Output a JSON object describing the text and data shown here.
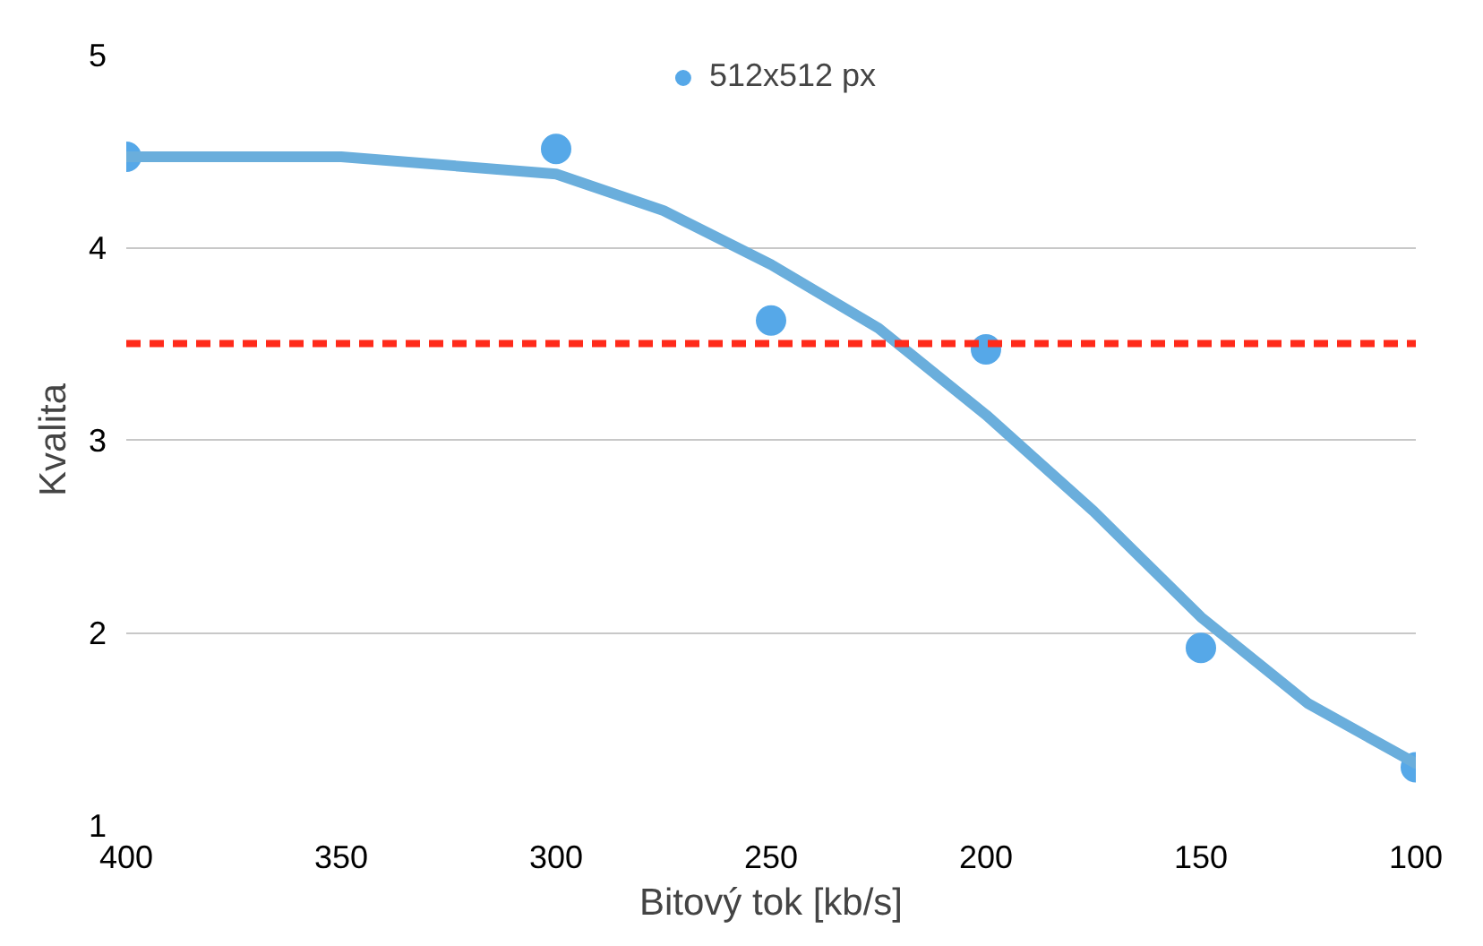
{
  "chart_data": {
    "type": "scatter",
    "xlabel": "Bitový tok [kb/s]",
    "ylabel": "Kvalita",
    "xlim": [
      400,
      100
    ],
    "xticks": [
      400,
      350,
      300,
      250,
      200,
      150,
      100
    ],
    "ylim": [
      1,
      5
    ],
    "yticks": [
      1,
      2,
      3,
      4,
      5
    ],
    "grid": "y",
    "legend": "top",
    "series": [
      {
        "name": "512x512 px",
        "marker": "circle",
        "color": "#56a8e8",
        "x": [
          400,
          300,
          250,
          200,
          150,
          100
        ],
        "values": [
          4.47,
          4.51,
          3.62,
          3.47,
          1.92,
          1.3
        ]
      },
      {
        "type": "line",
        "marker": "none",
        "color": "#6aaedc",
        "x": [
          400,
          350,
          300,
          275,
          250,
          225,
          200,
          175,
          150,
          125,
          100
        ],
        "values": [
          4.47,
          4.47,
          4.38,
          4.19,
          3.91,
          3.58,
          3.13,
          2.63,
          2.08,
          1.63,
          1.32
        ]
      }
    ],
    "ref_lines": [
      {
        "axis": "y",
        "value": 3.5,
        "color": "#ff2a1a",
        "line_style": "dashed"
      }
    ]
  }
}
